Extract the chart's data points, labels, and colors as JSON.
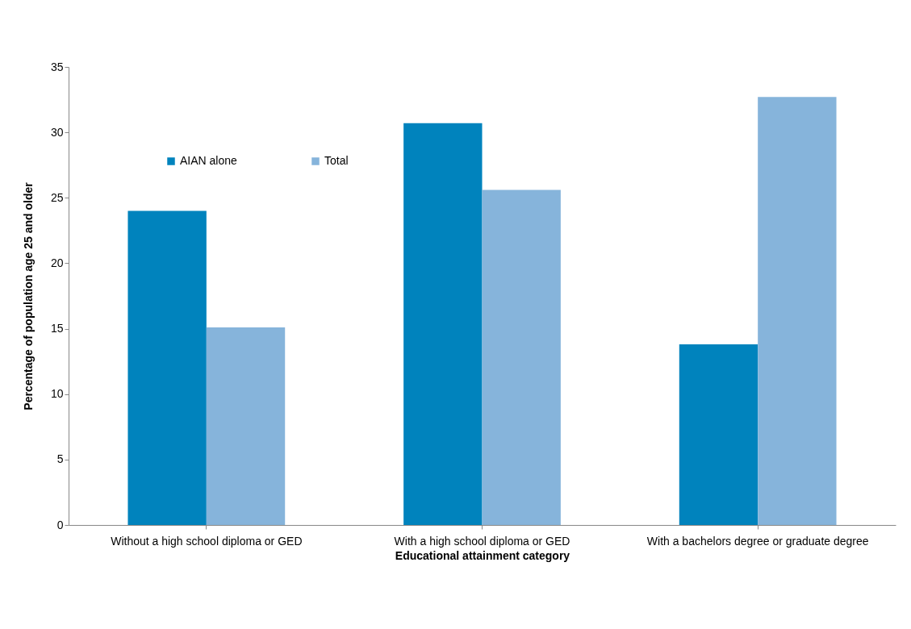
{
  "chart_data": {
    "type": "bar",
    "xlabel": "Educational attainment category",
    "ylabel": "Percentage of population age 25 and older",
    "categories": [
      "Without a high school diploma or GED",
      "With a  high school diploma or GED",
      "With a bachelors degree or graduate degree"
    ],
    "series": [
      {
        "name": "AIAN alone",
        "color": "#0083bd",
        "values": [
          24.0,
          30.7,
          13.8
        ]
      },
      {
        "name": "Total",
        "color": "#86b4db",
        "values": [
          15.1,
          25.6,
          32.7
        ]
      }
    ],
    "ylim": [
      0,
      35
    ],
    "yticks": [
      0,
      5,
      10,
      15,
      20,
      25,
      30,
      35
    ],
    "grid": false,
    "legend": "top left"
  }
}
